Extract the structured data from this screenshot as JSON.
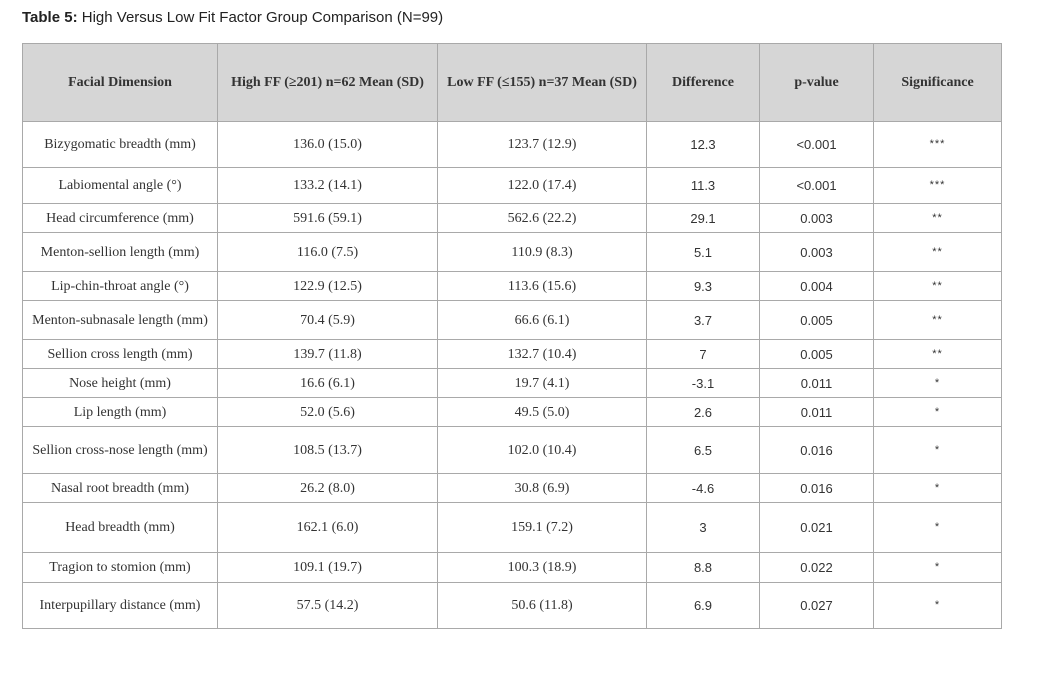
{
  "caption": {
    "label": "Table 5:",
    "text": " High Versus Low Fit Factor Group Comparison (N=99)"
  },
  "table": {
    "headers": [
      "Facial Dimension",
      "High FF (≥201) n=62 Mean (SD)",
      "Low FF (≤155) n=37 Mean (SD)",
      "Difference",
      "p-value",
      "Significance"
    ],
    "rows": [
      [
        "Bizygomatic breadth (mm)",
        "136.0 (15.0)",
        "123.7 (12.9)",
        "12.3",
        "<0.001",
        "***"
      ],
      [
        "Labiomental angle (°)",
        "133.2 (14.1)",
        "122.0 (17.4)",
        "11.3",
        "<0.001",
        "***"
      ],
      [
        "Head circumference (mm)",
        "591.6 (59.1)",
        "562.6 (22.2)",
        "29.1",
        "0.003",
        "**"
      ],
      [
        "Menton-sellion length (mm)",
        "116.0 (7.5)",
        "110.9 (8.3)",
        "5.1",
        "0.003",
        "**"
      ],
      [
        "Lip-chin-throat angle (°)",
        "122.9 (12.5)",
        "113.6 (15.6)",
        "9.3",
        "0.004",
        "**"
      ],
      [
        "Menton-subnasale length (mm)",
        "70.4 (5.9)",
        "66.6 (6.1)",
        "3.7",
        "0.005",
        "**"
      ],
      [
        "Sellion cross length (mm)",
        "139.7 (11.8)",
        "132.7 (10.4)",
        "7",
        "0.005",
        "**"
      ],
      [
        "Nose height (mm)",
        "16.6 (6.1)",
        "19.7 (4.1)",
        "-3.1",
        "0.011",
        "*"
      ],
      [
        "Lip length (mm)",
        "52.0 (5.6)",
        "49.5 (5.0)",
        "2.6",
        "0.011",
        "*"
      ],
      [
        "Sellion cross-nose length (mm)",
        "108.5 (13.7)",
        "102.0 (10.4)",
        "6.5",
        "0.016",
        "*"
      ],
      [
        "Nasal root breadth (mm)",
        "26.2 (8.0)",
        "30.8 (6.9)",
        "-4.6",
        "0.016",
        "*"
      ],
      [
        "Head breadth (mm)",
        "162.1 (6.0)",
        "159.1 (7.2)",
        "3",
        "0.021",
        "*"
      ],
      [
        "Tragion to stomion (mm)",
        "109.1 (19.7)",
        "100.3 (18.9)",
        "8.8",
        "0.022",
        "*"
      ],
      [
        "Interpupillary distance (mm)",
        "57.5 (14.2)",
        "50.6 (11.8)",
        "6.9",
        "0.027",
        "*"
      ]
    ]
  }
}
